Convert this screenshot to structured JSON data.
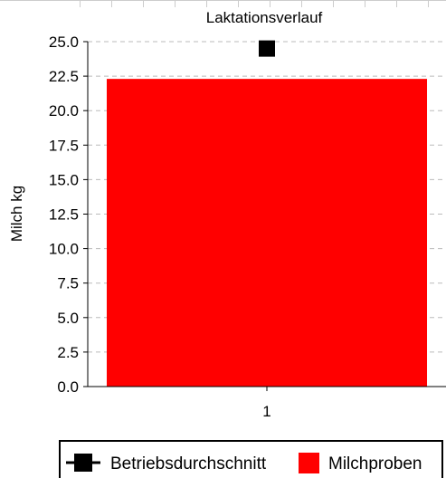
{
  "chart_data": {
    "type": "bar",
    "title": "Laktationsverlauf",
    "ylabel": "Milch kg",
    "xlabel": "",
    "categories": [
      "1"
    ],
    "ylim": [
      0,
      25
    ],
    "yticks": [
      "0.0",
      "2.5",
      "5.0",
      "7.5",
      "10.0",
      "12.5",
      "15.0",
      "17.5",
      "20.0",
      "22.5",
      "25.0"
    ],
    "grid": true,
    "legend_position": "bottom-right",
    "series": [
      {
        "name": "Milchproben",
        "kind": "bar",
        "color": "#ff0000",
        "values": [
          22.3
        ]
      },
      {
        "name": "Betriebsdurchschnitt",
        "kind": "line-marker",
        "color": "#000000",
        "values": [
          24.5
        ]
      }
    ]
  }
}
